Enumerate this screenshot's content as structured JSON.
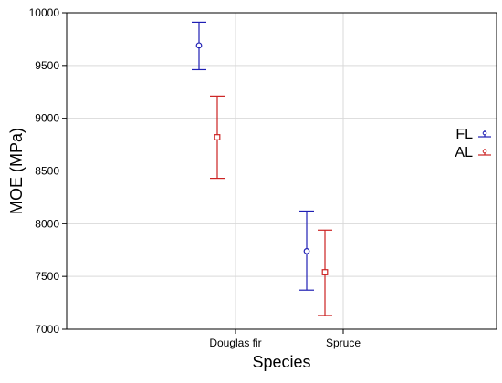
{
  "chart_data": {
    "type": "scatter",
    "title": "",
    "xlabel": "Species",
    "ylabel": "MOE (MPa)",
    "categories": [
      "Douglas fir",
      "Spruce"
    ],
    "ylim": [
      7000,
      10000
    ],
    "yticks": [
      7000,
      7500,
      8000,
      8500,
      9000,
      9500,
      10000
    ],
    "grid": true,
    "legend_position": "right",
    "series": [
      {
        "name": "FL",
        "color": "#1f1fb4",
        "marker": "circle",
        "means": [
          9690,
          7740
        ],
        "lower": [
          9460,
          7370
        ],
        "upper": [
          9910,
          8120
        ]
      },
      {
        "name": "AL",
        "color": "#cc2222",
        "marker": "square",
        "means": [
          8820,
          7540
        ],
        "lower": [
          8430,
          7130
        ],
        "upper": [
          9210,
          7940
        ]
      }
    ]
  }
}
